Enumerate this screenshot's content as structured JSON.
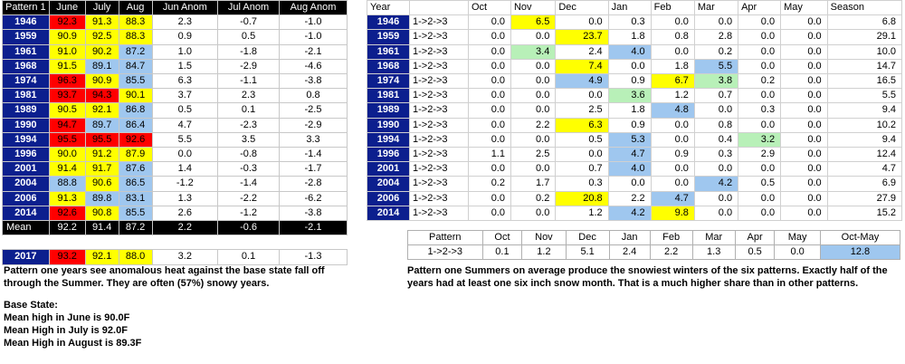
{
  "left_table": {
    "headers": [
      "Pattern 1",
      "June",
      "July",
      "Aug",
      "Jun Anom",
      "Jul Anom",
      "Aug Anom"
    ],
    "rows": [
      {
        "year": "1946",
        "june": "92.3",
        "july": "91.3",
        "aug": "88.3",
        "ja": "2.3",
        "jla": "-0.7",
        "aa": "-1.0",
        "c": [
          "red",
          "yel",
          "yel"
        ]
      },
      {
        "year": "1959",
        "june": "90.9",
        "july": "92.5",
        "aug": "88.3",
        "ja": "0.9",
        "jla": "0.5",
        "aa": "-1.0",
        "c": [
          "yel",
          "yel",
          "yel"
        ]
      },
      {
        "year": "1961",
        "june": "91.0",
        "july": "90.2",
        "aug": "87.2",
        "ja": "1.0",
        "jla": "-1.8",
        "aa": "-2.1",
        "c": [
          "yel",
          "yel",
          "blu"
        ]
      },
      {
        "year": "1968",
        "june": "91.5",
        "july": "89.1",
        "aug": "84.7",
        "ja": "1.5",
        "jla": "-2.9",
        "aa": "-4.6",
        "c": [
          "yel",
          "blu",
          "blu"
        ]
      },
      {
        "year": "1974",
        "june": "96.3",
        "july": "90.9",
        "aug": "85.5",
        "ja": "6.3",
        "jla": "-1.1",
        "aa": "-3.8",
        "c": [
          "red",
          "yel",
          "blu"
        ]
      },
      {
        "year": "1981",
        "june": "93.7",
        "july": "94.3",
        "aug": "90.1",
        "ja": "3.7",
        "jla": "2.3",
        "aa": "0.8",
        "c": [
          "red",
          "red",
          "yel"
        ]
      },
      {
        "year": "1989",
        "june": "90.5",
        "july": "92.1",
        "aug": "86.8",
        "ja": "0.5",
        "jla": "0.1",
        "aa": "-2.5",
        "c": [
          "yel",
          "yel",
          "blu"
        ]
      },
      {
        "year": "1990",
        "june": "94.7",
        "july": "89.7",
        "aug": "86.4",
        "ja": "4.7",
        "jla": "-2.3",
        "aa": "-2.9",
        "c": [
          "red",
          "blu",
          "blu"
        ]
      },
      {
        "year": "1994",
        "june": "95.5",
        "july": "95.5",
        "aug": "92.6",
        "ja": "5.5",
        "jla": "3.5",
        "aa": "3.3",
        "c": [
          "red",
          "red",
          "red"
        ]
      },
      {
        "year": "1996",
        "june": "90.0",
        "july": "91.2",
        "aug": "87.9",
        "ja": "0.0",
        "jla": "-0.8",
        "aa": "-1.4",
        "c": [
          "yel",
          "yel",
          "yel"
        ]
      },
      {
        "year": "2001",
        "june": "91.4",
        "july": "91.7",
        "aug": "87.6",
        "ja": "1.4",
        "jla": "-0.3",
        "aa": "-1.7",
        "c": [
          "yel",
          "yel",
          "blu"
        ]
      },
      {
        "year": "2004",
        "june": "88.8",
        "july": "90.6",
        "aug": "86.5",
        "ja": "-1.2",
        "jla": "-1.4",
        "aa": "-2.8",
        "c": [
          "blu",
          "yel",
          "blu"
        ]
      },
      {
        "year": "2006",
        "june": "91.3",
        "july": "89.8",
        "aug": "83.1",
        "ja": "1.3",
        "jla": "-2.2",
        "aa": "-6.2",
        "c": [
          "yel",
          "blu",
          "blu"
        ]
      },
      {
        "year": "2014",
        "june": "92.6",
        "july": "90.8",
        "aug": "85.5",
        "ja": "2.6",
        "jla": "-1.2",
        "aa": "-3.8",
        "c": [
          "red",
          "yel",
          "blu"
        ]
      }
    ],
    "mean": {
      "label": "Mean",
      "june": "92.2",
      "july": "91.4",
      "aug": "87.2",
      "ja": "2.2",
      "jla": "-0.6",
      "aa": "-2.1"
    },
    "current": {
      "year": "2017",
      "june": "93.2",
      "july": "92.1",
      "aug": "88.0",
      "ja": "3.2",
      "jla": "0.1",
      "aa": "-1.3",
      "c": [
        "red",
        "yel",
        "yel"
      ]
    }
  },
  "right_table": {
    "headers": [
      "Year",
      "",
      "Oct",
      "Nov",
      "Dec",
      "Jan",
      "Feb",
      "Mar",
      "Apr",
      "May",
      "Season"
    ],
    "rows": [
      {
        "year": "1946",
        "p": "1->2->3",
        "v": [
          "0.0",
          "6.5",
          "0.0",
          "0.3",
          "0.0",
          "0.0",
          "0.0",
          "0.0",
          "6.8"
        ],
        "c": [
          "",
          "yel",
          "",
          "",
          "",
          "",
          "",
          "",
          ""
        ]
      },
      {
        "year": "1959",
        "p": "1->2->3",
        "v": [
          "0.0",
          "0.0",
          "23.7",
          "1.8",
          "0.8",
          "2.8",
          "0.0",
          "0.0",
          "29.1"
        ],
        "c": [
          "",
          "",
          "yel",
          "",
          "",
          "",
          "",
          "",
          ""
        ]
      },
      {
        "year": "1961",
        "p": "1->2->3",
        "v": [
          "0.0",
          "3.4",
          "2.4",
          "4.0",
          "0.0",
          "0.2",
          "0.0",
          "0.0",
          "10.0"
        ],
        "c": [
          "",
          "grn",
          "",
          "blu",
          "",
          "",
          "",
          "",
          ""
        ]
      },
      {
        "year": "1968",
        "p": "1->2->3",
        "v": [
          "0.0",
          "0.0",
          "7.4",
          "0.0",
          "1.8",
          "5.5",
          "0.0",
          "0.0",
          "14.7"
        ],
        "c": [
          "",
          "",
          "yel",
          "",
          "",
          "blu",
          "",
          "",
          ""
        ]
      },
      {
        "year": "1974",
        "p": "1->2->3",
        "v": [
          "0.0",
          "0.0",
          "4.9",
          "0.9",
          "6.7",
          "3.8",
          "0.2",
          "0.0",
          "16.5"
        ],
        "c": [
          "",
          "",
          "blu",
          "",
          "yel",
          "grn",
          "",
          "",
          ""
        ]
      },
      {
        "year": "1981",
        "p": "1->2->3",
        "v": [
          "0.0",
          "0.0",
          "0.0",
          "3.6",
          "1.2",
          "0.7",
          "0.0",
          "0.0",
          "5.5"
        ],
        "c": [
          "",
          "",
          "",
          "grn",
          "",
          "",
          "",
          "",
          ""
        ]
      },
      {
        "year": "1989",
        "p": "1->2->3",
        "v": [
          "0.0",
          "0.0",
          "2.5",
          "1.8",
          "4.8",
          "0.0",
          "0.3",
          "0.0",
          "9.4"
        ],
        "c": [
          "",
          "",
          "",
          "",
          "blu",
          "",
          "",
          "",
          ""
        ]
      },
      {
        "year": "1990",
        "p": "1->2->3",
        "v": [
          "0.0",
          "2.2",
          "6.3",
          "0.9",
          "0.0",
          "0.8",
          "0.0",
          "0.0",
          "10.2"
        ],
        "c": [
          "",
          "",
          "yel",
          "",
          "",
          "",
          "",
          "",
          ""
        ]
      },
      {
        "year": "1994",
        "p": "1->2->3",
        "v": [
          "0.0",
          "0.0",
          "0.5",
          "5.3",
          "0.0",
          "0.4",
          "3.2",
          "0.0",
          "9.4"
        ],
        "c": [
          "",
          "",
          "",
          "blu",
          "",
          "",
          "grn",
          "",
          ""
        ]
      },
      {
        "year": "1996",
        "p": "1->2->3",
        "v": [
          "1.1",
          "2.5",
          "0.0",
          "4.7",
          "0.9",
          "0.3",
          "2.9",
          "0.0",
          "12.4"
        ],
        "c": [
          "",
          "",
          "",
          "blu",
          "",
          "",
          "",
          "",
          ""
        ]
      },
      {
        "year": "2001",
        "p": "1->2->3",
        "v": [
          "0.0",
          "0.0",
          "0.7",
          "4.0",
          "0.0",
          "0.0",
          "0.0",
          "0.0",
          "4.7"
        ],
        "c": [
          "",
          "",
          "",
          "blu",
          "",
          "",
          "",
          "",
          ""
        ]
      },
      {
        "year": "2004",
        "p": "1->2->3",
        "v": [
          "0.2",
          "1.7",
          "0.3",
          "0.0",
          "0.0",
          "4.2",
          "0.5",
          "0.0",
          "6.9"
        ],
        "c": [
          "",
          "",
          "",
          "",
          "",
          "blu",
          "",
          "",
          ""
        ]
      },
      {
        "year": "2006",
        "p": "1->2->3",
        "v": [
          "0.0",
          "0.2",
          "20.8",
          "2.2",
          "4.7",
          "0.0",
          "0.0",
          "0.0",
          "27.9"
        ],
        "c": [
          "",
          "",
          "yel",
          "",
          "blu",
          "",
          "",
          "",
          ""
        ]
      },
      {
        "year": "2014",
        "p": "1->2->3",
        "v": [
          "0.0",
          "0.0",
          "1.2",
          "4.2",
          "9.8",
          "0.0",
          "0.0",
          "0.0",
          "15.2"
        ],
        "c": [
          "",
          "",
          "",
          "blu",
          "yel",
          "",
          "",
          "",
          ""
        ]
      }
    ]
  },
  "summary_table": {
    "headers": [
      "Pattern",
      "Oct",
      "Nov",
      "Dec",
      "Jan",
      "Feb",
      "Mar",
      "Apr",
      "May",
      "Oct-May"
    ],
    "row": [
      "1->2->3",
      "0.1",
      "1.2",
      "5.1",
      "2.4",
      "2.2",
      "1.3",
      "0.5",
      "0.0",
      "12.8"
    ]
  },
  "text": {
    "p1": "Pattern one years see anomalous heat against the base state fall off through the Summer. They are often (57%) snowy years.",
    "base_title": "Base State:",
    "base_lines": [
      "Mean high in June is 90.0F",
      "Mean High in July is 92.0F",
      "Mean High in August is 89.3F"
    ],
    "p2": "Pattern one Summers on average produce the snowiest winters of the six patterns. Exactly half of the years had at least one six inch snow month. That is a much higher share than in other patterns."
  },
  "colors": {
    "red": "#ff0000",
    "yellow": "#ffff00",
    "blue": "#9fc7ef",
    "green": "#b8f0b8",
    "year_bg": "#0c1f8e"
  }
}
